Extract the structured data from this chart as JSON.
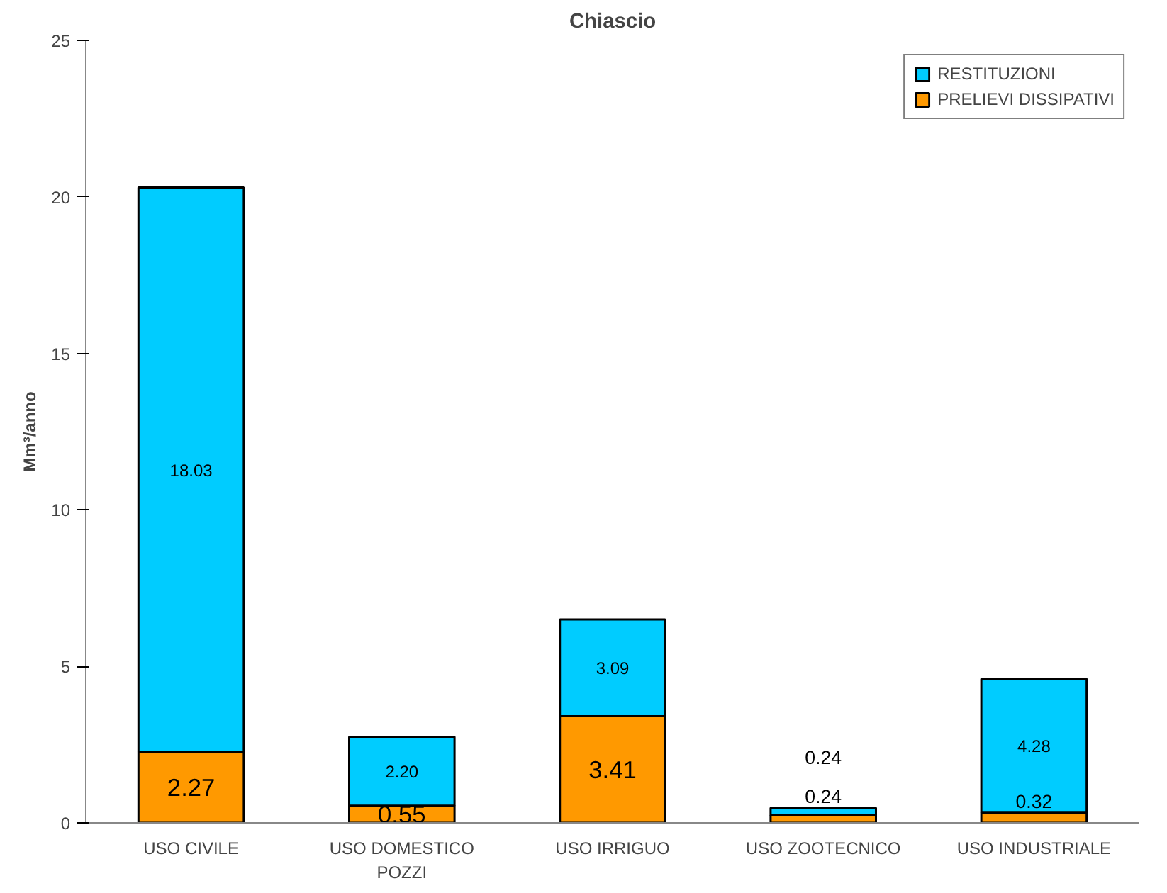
{
  "chart_data": {
    "type": "bar",
    "title": "Chiascio",
    "ylabel": "Mm³/anno",
    "categories": [
      "USO CIVILE",
      "USO DOMESTICO\nPOZZI",
      "USO IRRIGUO",
      "USO ZOOTECNICO",
      "USO INDUSTRIALE"
    ],
    "stacked": true,
    "series": [
      {
        "name": "PRELIEVI DISSIPATIVI",
        "color": "#ff9900",
        "values": [
          2.27,
          0.55,
          3.41,
          0.24,
          0.32
        ],
        "value_labels": [
          "2.27",
          "0.55",
          "3.41",
          "0.24",
          "0.32"
        ]
      },
      {
        "name": "RESTITUZIONI",
        "color": "#00ccff",
        "values": [
          18.03,
          2.2,
          3.09,
          0.24,
          4.28
        ],
        "value_labels": [
          "18.03",
          "2.20",
          "3.09",
          "0.24",
          "4.28"
        ]
      }
    ],
    "ylim": [
      0,
      25
    ],
    "yticks": [
      0,
      5,
      10,
      15,
      20,
      25
    ],
    "grid": false,
    "legend": "top right"
  }
}
